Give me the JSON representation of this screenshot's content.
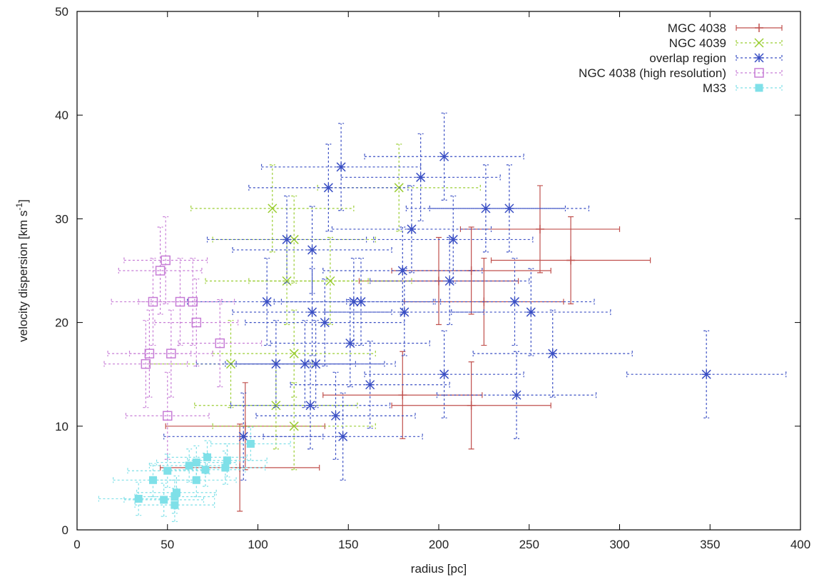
{
  "chart_data": {
    "type": "scatter",
    "xlabel": "radius [pc]",
    "ylabel": "velocity dispersion [km s",
    "ylabel_sup": "-1",
    "ylabel_end": "]",
    "xlim": [
      0,
      400
    ],
    "ylim": [
      0,
      50
    ],
    "xticks": [
      0,
      50,
      100,
      150,
      200,
      250,
      300,
      350,
      400
    ],
    "yticks": [
      0,
      10,
      20,
      30,
      40,
      50
    ],
    "grid": false,
    "legend_position": "top-right",
    "series": [
      {
        "name": "MGC 4038",
        "color": "#c0504d",
        "marker": "plus",
        "dashed": false,
        "points": [
          {
            "x": 256,
            "y": 29,
            "xerr": 44,
            "yerr": 4.2
          },
          {
            "x": 273,
            "y": 26,
            "xerr": 44,
            "yerr": 4.2
          },
          {
            "x": 218,
            "y": 25,
            "xerr": 44,
            "yerr": 4.2
          },
          {
            "x": 200,
            "y": 24,
            "xerr": 44,
            "yerr": 4.2
          },
          {
            "x": 225,
            "y": 22,
            "xerr": 44,
            "yerr": 4.2
          },
          {
            "x": 180,
            "y": 13,
            "xerr": 44,
            "yerr": 4.2
          },
          {
            "x": 218,
            "y": 12,
            "xerr": 44,
            "yerr": 4.2
          },
          {
            "x": 90,
            "y": 6,
            "xerr": 44,
            "yerr": 4.2
          },
          {
            "x": 93,
            "y": 10,
            "xerr": 44,
            "yerr": 4.2
          }
        ]
      },
      {
        "name": "NGC 4039",
        "color": "#9acd32",
        "marker": "cross",
        "dashed": true,
        "points": [
          {
            "x": 108,
            "y": 31,
            "xerr": 45,
            "yerr": 4.2
          },
          {
            "x": 178,
            "y": 33,
            "xerr": 45,
            "yerr": 4.2
          },
          {
            "x": 120,
            "y": 28,
            "xerr": 45,
            "yerr": 4.2
          },
          {
            "x": 140,
            "y": 24,
            "xerr": 45,
            "yerr": 4.2
          },
          {
            "x": 116,
            "y": 24,
            "xerr": 45,
            "yerr": 4.2
          },
          {
            "x": 120,
            "y": 17,
            "xerr": 45,
            "yerr": 4.2
          },
          {
            "x": 85,
            "y": 16,
            "xerr": 45,
            "yerr": 4.2
          },
          {
            "x": 120,
            "y": 10,
            "xerr": 45,
            "yerr": 4.2
          },
          {
            "x": 110,
            "y": 12,
            "xerr": 45,
            "yerr": 4.2
          }
        ]
      },
      {
        "name": "overlap region",
        "color": "#3a4fc4",
        "marker": "star",
        "dashed": true,
        "points": [
          {
            "x": 203,
            "y": 36,
            "xerr": 44,
            "yerr": 4.2
          },
          {
            "x": 146,
            "y": 35,
            "xerr": 44,
            "yerr": 4.2
          },
          {
            "x": 190,
            "y": 34,
            "xerr": 44,
            "yerr": 4.2
          },
          {
            "x": 139,
            "y": 33,
            "xerr": 44,
            "yerr": 4.2
          },
          {
            "x": 226,
            "y": 31,
            "xerr": 44,
            "yerr": 4.2
          },
          {
            "x": 239,
            "y": 31,
            "xerr": 44,
            "yerr": 4.2
          },
          {
            "x": 185,
            "y": 29,
            "xerr": 44,
            "yerr": 4.2
          },
          {
            "x": 116,
            "y": 28,
            "xerr": 44,
            "yerr": 4.2
          },
          {
            "x": 208,
            "y": 28,
            "xerr": 44,
            "yerr": 4.2
          },
          {
            "x": 130,
            "y": 27,
            "xerr": 44,
            "yerr": 4.2
          },
          {
            "x": 180,
            "y": 25,
            "xerr": 44,
            "yerr": 4.2
          },
          {
            "x": 206,
            "y": 24,
            "xerr": 44,
            "yerr": 4.2
          },
          {
            "x": 105,
            "y": 22,
            "xerr": 44,
            "yerr": 4.2
          },
          {
            "x": 153,
            "y": 22,
            "xerr": 44,
            "yerr": 4.2
          },
          {
            "x": 157,
            "y": 22,
            "xerr": 44,
            "yerr": 4.2
          },
          {
            "x": 242,
            "y": 22,
            "xerr": 44,
            "yerr": 4.2
          },
          {
            "x": 130,
            "y": 21,
            "xerr": 44,
            "yerr": 4.2
          },
          {
            "x": 181,
            "y": 21,
            "xerr": 44,
            "yerr": 4.2
          },
          {
            "x": 251,
            "y": 21,
            "xerr": 44,
            "yerr": 4.2
          },
          {
            "x": 137,
            "y": 20,
            "xerr": 44,
            "yerr": 4.2
          },
          {
            "x": 151,
            "y": 18,
            "xerr": 44,
            "yerr": 4.2
          },
          {
            "x": 263,
            "y": 17,
            "xerr": 44,
            "yerr": 4.2
          },
          {
            "x": 110,
            "y": 16,
            "xerr": 44,
            "yerr": 4.2
          },
          {
            "x": 126,
            "y": 16,
            "xerr": 44,
            "yerr": 4.2
          },
          {
            "x": 132,
            "y": 16,
            "xerr": 44,
            "yerr": 4.2
          },
          {
            "x": 348,
            "y": 15,
            "xerr": 44,
            "yerr": 4.2
          },
          {
            "x": 203,
            "y": 15,
            "xerr": 44,
            "yerr": 4.2
          },
          {
            "x": 162,
            "y": 14,
            "xerr": 44,
            "yerr": 4.2
          },
          {
            "x": 243,
            "y": 13,
            "xerr": 44,
            "yerr": 4.2
          },
          {
            "x": 129,
            "y": 12,
            "xerr": 44,
            "yerr": 4.2
          },
          {
            "x": 143,
            "y": 11,
            "xerr": 44,
            "yerr": 4.2
          },
          {
            "x": 92,
            "y": 9,
            "xerr": 44,
            "yerr": 4.2
          },
          {
            "x": 147,
            "y": 9,
            "xerr": 44,
            "yerr": 4.2
          }
        ]
      },
      {
        "name": "NGC 4038 (high resolution)",
        "color": "#c77dd6",
        "marker": "square",
        "dashed": true,
        "points": [
          {
            "x": 49,
            "y": 26,
            "xerr": 23,
            "yerr": 4.2
          },
          {
            "x": 46,
            "y": 25,
            "xerr": 23,
            "yerr": 4.2
          },
          {
            "x": 42,
            "y": 22,
            "xerr": 23,
            "yerr": 4.2
          },
          {
            "x": 57,
            "y": 22,
            "xerr": 23,
            "yerr": 4.2
          },
          {
            "x": 64,
            "y": 22,
            "xerr": 23,
            "yerr": 4.2
          },
          {
            "x": 66,
            "y": 20,
            "xerr": 23,
            "yerr": 4.2
          },
          {
            "x": 79,
            "y": 18,
            "xerr": 23,
            "yerr": 4.2
          },
          {
            "x": 40,
            "y": 17,
            "xerr": 23,
            "yerr": 4.2
          },
          {
            "x": 52,
            "y": 17,
            "xerr": 23,
            "yerr": 4.2
          },
          {
            "x": 38,
            "y": 16,
            "xerr": 23,
            "yerr": 4.2
          },
          {
            "x": 50,
            "y": 11,
            "xerr": 23,
            "yerr": 4.2
          }
        ]
      },
      {
        "name": "M33",
        "color": "#7fe0e8",
        "marker": "filled-square",
        "dashed": true,
        "points": [
          {
            "x": 96,
            "y": 8.3,
            "xerr": 22,
            "yerr": 1.6
          },
          {
            "x": 72,
            "y": 7.0,
            "xerr": 22,
            "yerr": 1.6
          },
          {
            "x": 83,
            "y": 6.7,
            "xerr": 22,
            "yerr": 1.6
          },
          {
            "x": 66,
            "y": 6.5,
            "xerr": 22,
            "yerr": 1.6
          },
          {
            "x": 62,
            "y": 6.2,
            "xerr": 22,
            "yerr": 1.6
          },
          {
            "x": 71,
            "y": 5.8,
            "xerr": 22,
            "yerr": 1.6
          },
          {
            "x": 50,
            "y": 5.7,
            "xerr": 22,
            "yerr": 1.6
          },
          {
            "x": 82,
            "y": 6.0,
            "xerr": 22,
            "yerr": 1.6
          },
          {
            "x": 42,
            "y": 4.8,
            "xerr": 22,
            "yerr": 1.6
          },
          {
            "x": 66,
            "y": 4.8,
            "xerr": 22,
            "yerr": 1.6
          },
          {
            "x": 55,
            "y": 3.6,
            "xerr": 22,
            "yerr": 1.6
          },
          {
            "x": 54,
            "y": 3.2,
            "xerr": 22,
            "yerr": 1.6
          },
          {
            "x": 34,
            "y": 3.0,
            "xerr": 22,
            "yerr": 1.6
          },
          {
            "x": 48,
            "y": 2.9,
            "xerr": 22,
            "yerr": 1.6
          },
          {
            "x": 54,
            "y": 2.4,
            "xerr": 22,
            "yerr": 1.6
          }
        ]
      }
    ]
  }
}
